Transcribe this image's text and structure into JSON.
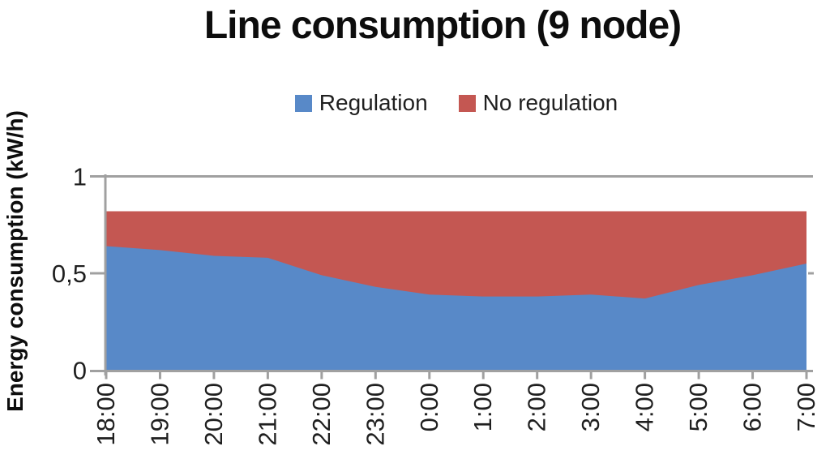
{
  "title": "Line consumption (9 node)",
  "legend": {
    "items": [
      {
        "label": "Regulation",
        "color": "#5889C8"
      },
      {
        "label": "No regulation",
        "color": "#C45752"
      }
    ]
  },
  "y_axis": {
    "label": "Energy consumption (kW/h)",
    "ticks": [
      {
        "label": "1",
        "value": 1
      },
      {
        "label": "0,5",
        "value": 0.5
      },
      {
        "label": "0",
        "value": 0
      }
    ]
  },
  "x_axis": {
    "ticks": [
      "18:00",
      "19:00",
      "20:00",
      "21:00",
      "22:00",
      "23:00",
      "0:00",
      "1:00",
      "2:00",
      "3:00",
      "4:00",
      "5:00",
      "6:00",
      "7:00"
    ]
  },
  "chart_data": {
    "type": "area",
    "title": "Line consumption (9 node)",
    "xlabel": "",
    "ylabel": "Energy consumption (kW/h)",
    "ylim": [
      0,
      1
    ],
    "y_tick_values": [
      0,
      0.5,
      1
    ],
    "legend_position": "top",
    "grid": "horizontal gridline at y=1 only",
    "x": [
      "18:00",
      "19:00",
      "20:00",
      "21:00",
      "22:00",
      "23:00",
      "0:00",
      "1:00",
      "2:00",
      "3:00",
      "4:00",
      "5:00",
      "6:00",
      "7:00"
    ],
    "series": [
      {
        "name": "Regulation",
        "color": "#5889C8",
        "values": [
          0.64,
          0.62,
          0.59,
          0.58,
          0.49,
          0.43,
          0.39,
          0.38,
          0.38,
          0.39,
          0.37,
          0.44,
          0.49,
          0.55
        ]
      },
      {
        "name": "No regulation",
        "color": "#C45752",
        "values": [
          0.82,
          0.82,
          0.82,
          0.82,
          0.82,
          0.82,
          0.82,
          0.82,
          0.82,
          0.82,
          0.82,
          0.82,
          0.82,
          0.82
        ]
      }
    ],
    "note": "Overlapping (not stacked) areas: 'No regulation' is a constant band at 0.82 drawn behind 'Regulation'; the visible red region is the gap between the two curves."
  },
  "colors": {
    "axis": "#A0A0A0",
    "text": "#1f1f1f",
    "background": "#FFFFFF"
  }
}
